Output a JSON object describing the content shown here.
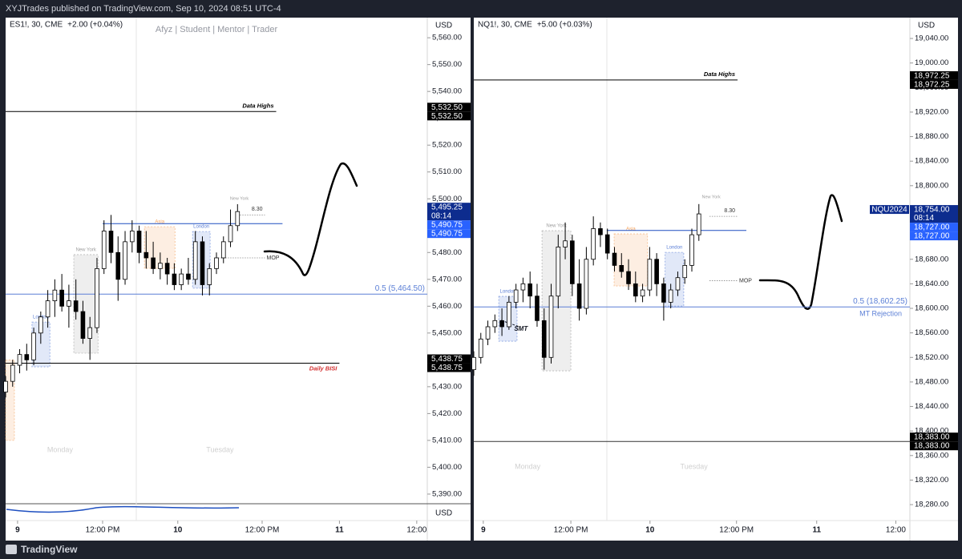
{
  "header": "XYJTrades published on TradingView.com, Sep 10, 2024 08:51 UTC-4",
  "footer": "TradingView",
  "chart_data": [
    {
      "type": "candlestick",
      "title": "ES1!, 30, CME",
      "change": "+2.00 (+0.04%)",
      "watermark": "Afyz | Student | Mentor | Trader",
      "currency": "USD",
      "volume_currency": "USD",
      "up_color": "#ffffff",
      "down_color": "#000000",
      "grid": false,
      "xlim": [
        0,
        120
      ],
      "ylim": [
        5386.7,
        5567.5
      ],
      "xticks": [
        {
          "value": 3.4,
          "label": "9"
        },
        {
          "value": 27.6,
          "label": "12:00 PM"
        },
        {
          "value": 49,
          "label": "10"
        },
        {
          "value": 73,
          "label": "12:00 PM"
        },
        {
          "value": 95,
          "label": "11"
        },
        {
          "value": 117,
          "label": "12:00"
        }
      ],
      "yticks": [
        {
          "value": 5560,
          "label": "5,560.00"
        },
        {
          "value": 5550,
          "label": "5,550.00"
        },
        {
          "value": 5540,
          "label": "5,540.00"
        },
        {
          "value": 5530,
          "label": "5,530.00"
        },
        {
          "value": 5520,
          "label": "5,520.00"
        },
        {
          "value": 5510,
          "label": "5,510.00"
        },
        {
          "value": 5500,
          "label": "5,500.00"
        },
        {
          "value": 5490,
          "label": "5,490.00"
        },
        {
          "value": 5480,
          "label": "5,480.00"
        },
        {
          "value": 5470,
          "label": "5,470.00"
        },
        {
          "value": 5460,
          "label": "5,460.00"
        },
        {
          "value": 5450,
          "label": "5,450.00"
        },
        {
          "value": 5440,
          "label": "5,440.00"
        },
        {
          "value": 5430,
          "label": "5,430.00"
        },
        {
          "value": 5420,
          "label": "5,420.00"
        },
        {
          "value": 5410,
          "label": "5,410.00"
        },
        {
          "value": 5400,
          "label": "5,400.00"
        },
        {
          "value": 5390,
          "label": "5,390.00"
        }
      ],
      "candles": {
        "x": [
          0,
          2,
          4,
          6,
          8,
          10,
          12,
          14,
          16,
          18,
          20,
          22,
          24,
          26,
          28,
          30,
          32,
          34,
          36,
          38,
          40,
          42,
          44,
          46,
          48,
          50,
          52,
          54,
          56,
          58,
          60,
          62,
          64,
          66
        ],
        "open": [
          5428,
          5432,
          5438,
          5442,
          5440,
          5450,
          5456,
          5462,
          5466,
          5460,
          5462,
          5458,
          5448,
          5452,
          5474,
          5488,
          5480,
          5470,
          5484,
          5488,
          5480,
          5478,
          5474,
          5476,
          5472,
          5468,
          5472,
          5470,
          5484,
          5468,
          5474,
          5478,
          5484,
          5490
        ],
        "high": [
          5434,
          5440,
          5444,
          5446,
          5452,
          5458,
          5466,
          5470,
          5472,
          5468,
          5470,
          5462,
          5456,
          5478,
          5492,
          5494,
          5486,
          5488,
          5492,
          5490,
          5488,
          5484,
          5480,
          5478,
          5476,
          5474,
          5478,
          5488,
          5486,
          5476,
          5480,
          5486,
          5496,
          5498
        ],
        "low": [
          5426,
          5430,
          5435,
          5436,
          5438,
          5446,
          5452,
          5456,
          5458,
          5452,
          5455,
          5446,
          5440,
          5450,
          5472,
          5476,
          5462,
          5468,
          5480,
          5476,
          5474,
          5472,
          5470,
          5468,
          5466,
          5466,
          5468,
          5468,
          5464,
          5464,
          5472,
          5476,
          5482,
          5488
        ],
        "close": [
          5432,
          5438,
          5442,
          5440,
          5450,
          5456,
          5462,
          5466,
          5460,
          5462,
          5458,
          5448,
          5452,
          5474,
          5488,
          5480,
          5470,
          5484,
          5488,
          5480,
          5478,
          5474,
          5476,
          5472,
          5468,
          5472,
          5470,
          5484,
          5468,
          5474,
          5478,
          5484,
          5490,
          5495.25
        ]
      },
      "zones": [
        {
          "x": [
            0,
            2.5
          ],
          "y": [
            5410,
            5440
          ],
          "color": "#f5a25d"
        },
        {
          "label": "London",
          "x": [
            7.5,
            12.6
          ],
          "y": [
            5437.4,
            5454.1
          ],
          "color": "#5b7fd6"
        },
        {
          "label": "New York",
          "x": [
            19.4,
            26.3
          ],
          "y": [
            5442.5,
            5479.2
          ],
          "color": "#9e9e9e"
        },
        {
          "label": "Asia",
          "x": [
            39.5,
            48.2
          ],
          "y": [
            5474.1,
            5489.6
          ],
          "color": "#f5a25d"
        },
        {
          "label": "London",
          "x": [
            53.2,
            58.2
          ],
          "y": [
            5466.7,
            5487.8
          ],
          "color": "#5b7fd6"
        }
      ],
      "annotations": [
        {
          "text": "New York",
          "x": 66.5,
          "y": 5500
        }
      ],
      "day_labels": [
        {
          "text": "Monday",
          "x": 15.5
        },
        {
          "text": "Tuesday",
          "x": 61
        }
      ],
      "levels": [
        {
          "label": "Data Highs",
          "value": 5532.5,
          "x": [
            0,
            77
          ],
          "color": "#000000",
          "label_color": "#000000",
          "bold": true
        },
        {
          "label": "Daily BISI",
          "value": 5438.75,
          "x": [
            0,
            95
          ],
          "color": "#000000",
          "label_color": "#d32f2f",
          "bold": true,
          "below": true
        },
        {
          "label": "0.5 (5,464.50)",
          "value": 5464.5,
          "x": [
            0,
            120
          ],
          "color": "#5b7fd6",
          "label_color": "#5b7fd6"
        },
        {
          "value": 5490.75,
          "x": [
            27.6,
            78.8
          ],
          "color": "#1e4fc0"
        },
        {
          "label": "MOP",
          "value": 5478,
          "x": [
            60.5,
            73.8
          ],
          "color": "#888888",
          "label_color": "#333333",
          "dashed": true,
          "side": "right"
        },
        {
          "label": "8.30",
          "value": 5494,
          "x": [
            66,
            73.8
          ],
          "color": "#888888",
          "label_color": "#333333",
          "dashed": true
        }
      ],
      "price_labels": [
        {
          "value": 5532.5,
          "label": "5,532.50",
          "color": "#000000"
        },
        {
          "value": 5532.5,
          "label": "5,532.50",
          "color": "#000000"
        },
        {
          "value": 5495.25,
          "label": "5,495.25",
          "sub": "08:14",
          "color": "#0d2c8e"
        },
        {
          "value": 5490.75,
          "label": "5,490.75",
          "color": "#2962ff"
        },
        {
          "value": 5490.75,
          "label": "5,490.75",
          "color": "#2962ff"
        },
        {
          "value": 5438.75,
          "label": "5,438.75",
          "color": "#000000"
        },
        {
          "value": 5438.75,
          "label": "5,438.75",
          "color": "#000000"
        }
      ]
    },
    {
      "type": "candlestick",
      "title": "NQ1!, 30, CME",
      "change": "+5.00 (+0.03%)",
      "currency": "USD",
      "up_color": "#ffffff",
      "down_color": "#000000",
      "grid": false,
      "xlim": [
        0,
        124
      ],
      "ylim": [
        18254,
        19074
      ],
      "xticks": [
        {
          "value": 2.7,
          "label": "9"
        },
        {
          "value": 27.6,
          "label": "12:00 PM"
        },
        {
          "value": 50.1,
          "label": "10"
        },
        {
          "value": 74.7,
          "label": "12:00 PM"
        },
        {
          "value": 97.5,
          "label": "11"
        },
        {
          "value": 120,
          "label": "12:00"
        }
      ],
      "yticks": [
        {
          "value": 19040,
          "label": "19,040.00"
        },
        {
          "value": 19000,
          "label": "19,000.00"
        },
        {
          "value": 18960,
          "label": "18,960.00"
        },
        {
          "value": 18920,
          "label": "18,920.00"
        },
        {
          "value": 18880,
          "label": "18,880.00"
        },
        {
          "value": 18840,
          "label": "18,840.00"
        },
        {
          "value": 18800,
          "label": "18,800.00"
        },
        {
          "value": 18760,
          "label": "18,760.00"
        },
        {
          "value": 18720,
          "label": "18,720.00"
        },
        {
          "value": 18680,
          "label": "18,680.00"
        },
        {
          "value": 18640,
          "label": "18,640.00"
        },
        {
          "value": 18600,
          "label": "18,600.00"
        },
        {
          "value": 18560,
          "label": "18,560.00"
        },
        {
          "value": 18520,
          "label": "18,520.00"
        },
        {
          "value": 18480,
          "label": "18,480.00"
        },
        {
          "value": 18440,
          "label": "18,440.00"
        },
        {
          "value": 18400,
          "label": "18,400.00"
        },
        {
          "value": 18360,
          "label": "18,360.00"
        },
        {
          "value": 18320,
          "label": "18,320.00"
        },
        {
          "value": 18280,
          "label": "18,280.00"
        }
      ],
      "candles": {
        "x": [
          0,
          2,
          4,
          6,
          8,
          10,
          12,
          14,
          16,
          18,
          20,
          22,
          24,
          26,
          28,
          30,
          32,
          34,
          36,
          38,
          40,
          42,
          44,
          46,
          48,
          50,
          52,
          54,
          56,
          58,
          60,
          62,
          64
        ],
        "open": [
          18500,
          18520,
          18550,
          18570,
          18580,
          18570,
          18610,
          18630,
          18640,
          18620,
          18580,
          18520,
          18620,
          18700,
          18710,
          18640,
          18600,
          18680,
          18730,
          18720,
          18690,
          18670,
          18660,
          18640,
          18620,
          18630,
          18680,
          18640,
          18610,
          18630,
          18650,
          18670,
          18720
        ],
        "high": [
          18530,
          18560,
          18580,
          18590,
          18600,
          18620,
          18640,
          18650,
          18660,
          18640,
          18600,
          18640,
          18720,
          18740,
          18720,
          18680,
          18700,
          18750,
          18740,
          18730,
          18700,
          18690,
          18680,
          18660,
          18640,
          18700,
          18690,
          18650,
          18640,
          18660,
          18680,
          18730,
          18770
        ],
        "low": [
          18490,
          18510,
          18540,
          18560,
          18555,
          18565,
          18600,
          18610,
          18600,
          18570,
          18500,
          18510,
          18600,
          18680,
          18620,
          18580,
          18590,
          18670,
          18700,
          18680,
          18660,
          18650,
          18630,
          18610,
          18610,
          18620,
          18620,
          18580,
          18600,
          18620,
          18640,
          18660,
          18710
        ],
        "close": [
          18520,
          18550,
          18570,
          18580,
          18570,
          18610,
          18630,
          18640,
          18620,
          18580,
          18520,
          18620,
          18700,
          18710,
          18640,
          18600,
          18680,
          18730,
          18720,
          18690,
          18670,
          18660,
          18640,
          18620,
          18630,
          18680,
          18640,
          18610,
          18630,
          18650,
          18670,
          18720,
          18754
        ]
      },
      "zones": [
        {
          "label": "London",
          "x": [
            7.1,
            12.3
          ],
          "y": [
            18546.4,
            18619.5
          ],
          "color": "#5b7fd6"
        },
        {
          "label": "New York",
          "x": [
            19.4,
            27.6
          ],
          "y": [
            18498.1,
            18726.6
          ],
          "color": "#9e9e9e"
        },
        {
          "label": "Asia",
          "x": [
            39.9,
            49.4
          ],
          "y": [
            18636.5,
            18721.4
          ],
          "color": "#f5a25d"
        },
        {
          "label": "London",
          "x": [
            54.4,
            59.7
          ],
          "y": [
            18603.8,
            18691.3
          ],
          "color": "#5b7fd6"
        }
      ],
      "annotations": [
        {
          "text": "New York",
          "x": 67.5,
          "y": 18781.5
        },
        {
          "text": "SMT",
          "x": 13.4,
          "y": 18566
        }
      ],
      "day_labels": [
        {
          "text": "Monday",
          "x": 15.3
        },
        {
          "text": "Tuesday",
          "x": 62.6
        }
      ],
      "levels": [
        {
          "label": "Data Highs",
          "value": 18972.25,
          "x": [
            0,
            75
          ],
          "color": "#000000",
          "label_color": "#000000",
          "bold": true
        },
        {
          "value": 18383,
          "x": [
            0,
            124
          ],
          "color": "#333333"
        },
        {
          "label": "0.5 (18,602.25)",
          "note": "MT Rejection",
          "value": 18602.25,
          "x": [
            0,
            124
          ],
          "color": "#5b7fd6",
          "label_color": "#5b7fd6"
        },
        {
          "value": 18727,
          "x": [
            37.8,
            77.5
          ],
          "color": "#1e4fc0"
        },
        {
          "label": "MOP",
          "value": 18645,
          "x": [
            67,
            75
          ],
          "color": "#888888",
          "label_color": "#333333",
          "dashed": true,
          "side": "right"
        },
        {
          "label": "8.30",
          "value": 18750,
          "x": [
            67,
            75
          ],
          "color": "#888888",
          "label_color": "#333333",
          "dashed": true
        }
      ],
      "price_labels": [
        {
          "value": 18972.25,
          "label": "18,972.25",
          "color": "#000000"
        },
        {
          "value": 18972.25,
          "label": "18,972.25",
          "color": "#000000"
        },
        {
          "value": 18754,
          "label": "18,754.00",
          "sub": "08:14",
          "tag": "NQU2024",
          "color": "#0d2c8e"
        },
        {
          "value": 18727,
          "label": "18,727.00",
          "color": "#2962ff"
        },
        {
          "value": 18727,
          "label": "18,727.00",
          "color": "#2962ff"
        },
        {
          "value": 18383,
          "label": "18,383.00",
          "color": "#000000"
        },
        {
          "value": 18383,
          "label": "18,383.00",
          "color": "#000000"
        }
      ]
    }
  ]
}
